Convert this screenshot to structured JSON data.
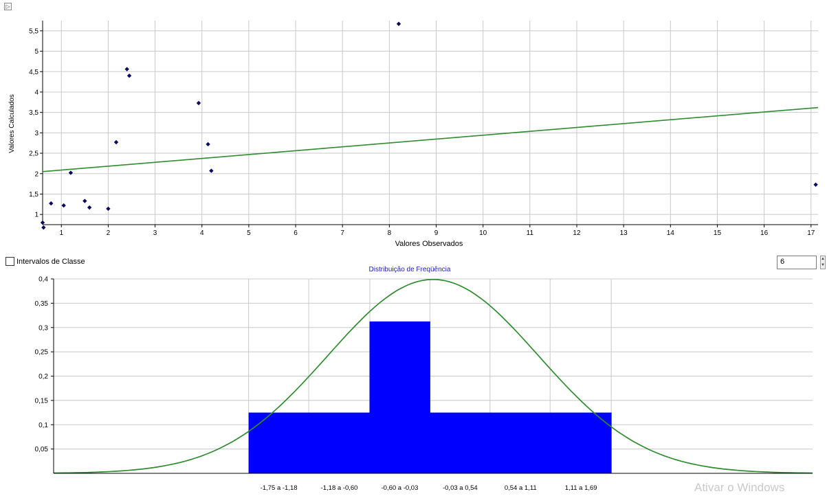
{
  "scatter": {
    "toggle_glyph": "▷",
    "chart_data": {
      "type": "scatter",
      "xlabel": "Valores Observados",
      "ylabel": "Valores Calculados",
      "xlim": [
        0.6,
        17.15
      ],
      "ylim": [
        0.75,
        5.75
      ],
      "xticks": [
        1,
        2,
        3,
        4,
        5,
        6,
        7,
        8,
        9,
        10,
        11,
        12,
        13,
        14,
        15,
        16,
        17
      ],
      "yticks": [
        1,
        1.5,
        2,
        2.5,
        3,
        3.5,
        4,
        4.5,
        5,
        5.5
      ],
      "ytick_labels": [
        "1",
        "1,5",
        "2",
        "2,5",
        "3",
        "3,5",
        "4",
        "4,5",
        "5",
        "5,5"
      ],
      "grid": true,
      "points": [
        {
          "x": 0.6,
          "y": 0.8
        },
        {
          "x": 0.62,
          "y": 0.68
        },
        {
          "x": 0.78,
          "y": 1.27
        },
        {
          "x": 1.05,
          "y": 1.22
        },
        {
          "x": 1.2,
          "y": 2.02
        },
        {
          "x": 1.5,
          "y": 1.33
        },
        {
          "x": 1.6,
          "y": 1.17
        },
        {
          "x": 2.0,
          "y": 1.14
        },
        {
          "x": 2.17,
          "y": 2.77
        },
        {
          "x": 2.4,
          "y": 4.56
        },
        {
          "x": 2.45,
          "y": 4.4
        },
        {
          "x": 3.93,
          "y": 3.73
        },
        {
          "x": 4.13,
          "y": 2.72
        },
        {
          "x": 4.2,
          "y": 2.07
        },
        {
          "x": 8.2,
          "y": 5.67
        },
        {
          "x": 17.1,
          "y": 1.73
        }
      ],
      "fit_line": {
        "x": [
          0.6,
          17.15
        ],
        "y": [
          2.05,
          3.62
        ]
      },
      "colors": {
        "points": "#0b0b5e",
        "line": "#2e8b2e",
        "grid": "#c8c8c8"
      }
    }
  },
  "histogram": {
    "checkbox_label": "Intervalos de Classe",
    "classes_value": "6",
    "chart_data": {
      "type": "bar",
      "title": "Distribuição de Freqüência",
      "categories": [
        "-1,75 a -1,18",
        "-1,18 a -0,60",
        "-0,60 a -0,03",
        "-0,03 a 0,54",
        "0,54 a 1,11",
        "1,11 a 1,69"
      ],
      "values": [
        0.125,
        0.125,
        0.3125,
        0.125,
        0.125,
        0.125
      ],
      "ylim": [
        0,
        0.4
      ],
      "yticks": [
        0.05,
        0.1,
        0.15,
        0.2,
        0.25,
        0.3,
        0.35,
        0.4
      ],
      "ytick_labels": [
        "0,05",
        "0,1",
        "0,15",
        "0,2",
        "0,25",
        "0,3",
        "0,35",
        "0,4"
      ],
      "grid": true,
      "normal_curve": true,
      "colors": {
        "bars": "#0000ff",
        "curve": "#2e8b2e",
        "title": "#2020b0",
        "grid": "#c8c8c8"
      }
    }
  },
  "watermark": "Ativar o Windows"
}
